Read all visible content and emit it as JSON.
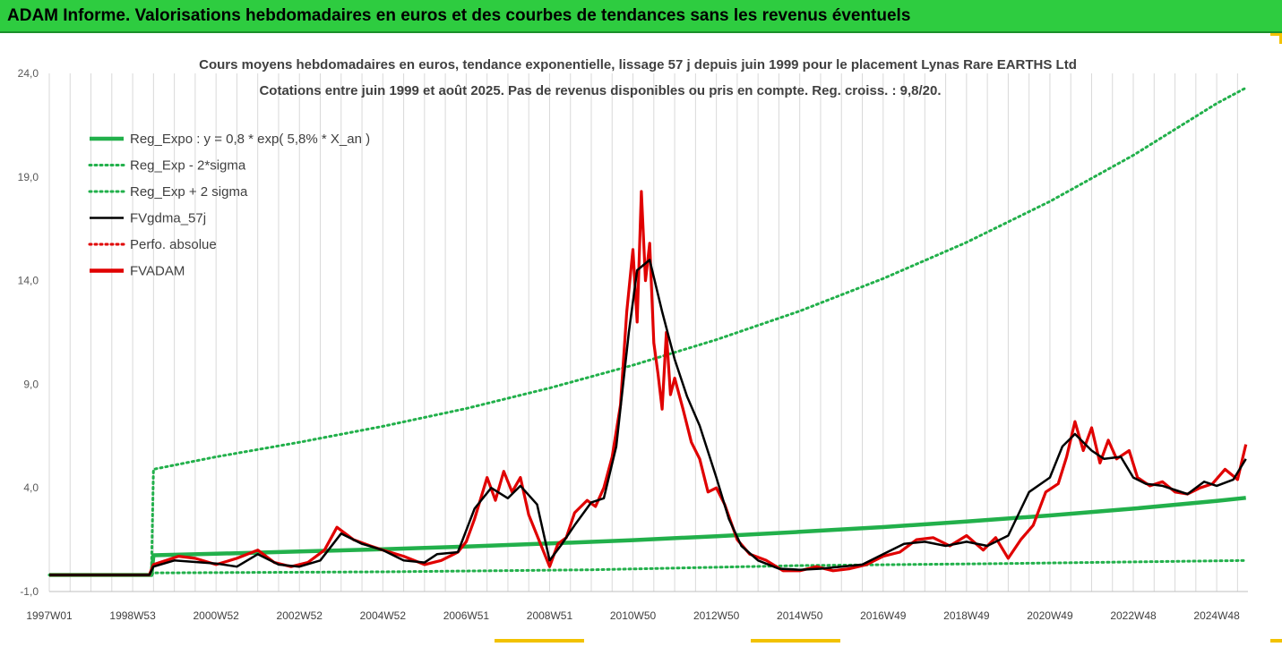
{
  "banner": {
    "title": "ADAM Informe. Valorisations hebdomadaires en euros et des courbes de tendances sans les revenus éventuels"
  },
  "colors": {
    "banner": "#2ecc40",
    "reg": "#22b04b",
    "sigma": "#22b04b",
    "fv57": "#000000",
    "perfo": "#e00000",
    "fvadam": "#e00000",
    "grid": "#d9d9d9"
  },
  "chart_data": {
    "type": "line",
    "title": "Cours moyens hebdomadaires en euros, tendance exponentielle, lissage 57 j depuis juin 1999 pour le placement Lynas Rare EARTHS Ltd",
    "subtitle": "Cotations entre juin 1999 et août 2025. Pas de revenus disponibles ou pris en compte. Reg. croiss. : 9,8/20.",
    "xlabel": "",
    "ylabel": "",
    "ylim": [
      -1,
      24
    ],
    "yticks": [
      "24,0",
      "19,0",
      "14,0",
      "9,0",
      "4,0",
      "-1,0"
    ],
    "yvalues": [
      24,
      19,
      14,
      9,
      4,
      -1
    ],
    "xlim": [
      1997.0,
      2025.75
    ],
    "xtick_labels": [
      "1997W01",
      "1998W53",
      "2000W52",
      "2002W52",
      "2004W52",
      "2006W51",
      "2008W51",
      "2010W50",
      "2012W50",
      "2014W50",
      "2016W49",
      "2018W49",
      "2020W49",
      "2022W48",
      "2024W48"
    ],
    "xtick_values": [
      1997.0,
      1999.0,
      2001.0,
      2003.0,
      2005.0,
      2007.0,
      2009.0,
      2011.0,
      2013.0,
      2015.0,
      2017.0,
      2019.0,
      2021.0,
      2023.0,
      2025.0
    ],
    "legend_position": "top-left",
    "grid": "vertical",
    "series": [
      {
        "name": "Reg_Expo : y = 0,8 * exp( 5,8% *  X_an )",
        "style": "solid-thick",
        "color": "#22b04b",
        "x": [
          1997.0,
          1999.45,
          1999.5,
          2001,
          2003,
          2005,
          2007,
          2009,
          2011,
          2013,
          2015,
          2017,
          2019,
          2021,
          2023,
          2025,
          2025.7
        ],
        "y": [
          -0.2,
          -0.2,
          0.75,
          0.82,
          0.93,
          1.04,
          1.17,
          1.32,
          1.48,
          1.67,
          1.88,
          2.11,
          2.38,
          2.67,
          3.0,
          3.37,
          3.52
        ]
      },
      {
        "name": "Reg_Exp - 2*sigma",
        "style": "dotted",
        "color": "#22b04b",
        "x": [
          1997.0,
          1999.45,
          1999.5,
          2005,
          2010,
          2015,
          2020,
          2025.7
        ],
        "y": [
          -0.2,
          -0.2,
          -0.1,
          -0.05,
          0.05,
          0.25,
          0.35,
          0.5
        ]
      },
      {
        "name": "Reg_Exp + 2 sigma",
        "style": "dotted",
        "color": "#22b04b",
        "x": [
          1997.0,
          1999.45,
          1999.5,
          2001,
          2003,
          2005,
          2007,
          2009,
          2011,
          2013,
          2015,
          2017,
          2019,
          2021,
          2023,
          2025,
          2025.7
        ],
        "y": [
          -0.2,
          -0.2,
          4.9,
          5.5,
          6.2,
          6.97,
          7.83,
          8.82,
          9.92,
          11.15,
          12.53,
          14.1,
          15.85,
          17.82,
          20.05,
          22.55,
          23.3
        ]
      },
      {
        "name": "FVgdma_57j",
        "style": "solid",
        "color": "#000000",
        "x": [
          1997.0,
          1999.4,
          1999.5,
          2000,
          2001,
          2001.5,
          2002,
          2002.5,
          2003,
          2003.5,
          2004,
          2004.5,
          2005,
          2005.5,
          2006,
          2006.3,
          2006.8,
          2007.2,
          2007.6,
          2008,
          2008.3,
          2008.7,
          2009,
          2009.3,
          2009.6,
          2010,
          2010.3,
          2010.6,
          2010.9,
          2011.1,
          2011.4,
          2011.7,
          2012,
          2012.3,
          2012.6,
          2013,
          2013.3,
          2013.6,
          2014,
          2014.5,
          2015,
          2015.5,
          2016,
          2016.5,
          2017,
          2017.5,
          2018,
          2018.5,
          2019,
          2019.5,
          2020,
          2020.5,
          2021,
          2021.3,
          2021.6,
          2022,
          2022.3,
          2022.7,
          2023,
          2023.3,
          2023.7,
          2024,
          2024.3,
          2024.7,
          2025,
          2025.4,
          2025.7
        ],
        "y": [
          -0.2,
          -0.2,
          0.2,
          0.5,
          0.35,
          0.2,
          0.8,
          0.3,
          0.2,
          0.5,
          1.8,
          1.3,
          1.0,
          0.5,
          0.4,
          0.8,
          0.9,
          3.0,
          4.0,
          3.5,
          4.1,
          3.2,
          0.5,
          1.3,
          2.2,
          3.3,
          3.5,
          6.0,
          11.5,
          14.5,
          15.0,
          12.5,
          10.2,
          8.4,
          7.0,
          4.5,
          2.5,
          1.2,
          0.5,
          0.1,
          0.05,
          0.1,
          0.2,
          0.3,
          0.8,
          1.3,
          1.4,
          1.2,
          1.4,
          1.2,
          1.7,
          3.8,
          4.5,
          6.0,
          6.6,
          5.8,
          5.4,
          5.5,
          4.5,
          4.2,
          4.1,
          3.9,
          3.7,
          4.3,
          4.1,
          4.4,
          5.4
        ]
      },
      {
        "name": "Perfo. absolue",
        "style": "dotted",
        "color": "#e00000",
        "x": [],
        "y": []
      },
      {
        "name": "FVADAM",
        "style": "solid-thick",
        "color": "#e00000",
        "x": [
          1997.0,
          1999.4,
          1999.5,
          1999.8,
          2000.1,
          2000.5,
          2001.0,
          2001.5,
          2002.0,
          2002.4,
          2002.8,
          2003.2,
          2003.6,
          2003.9,
          2004.3,
          2004.7,
          2005.0,
          2005.5,
          2006.0,
          2006.4,
          2006.8,
          2007.0,
          2007.2,
          2007.5,
          2007.7,
          2007.9,
          2008.1,
          2008.3,
          2008.5,
          2008.8,
          2009.0,
          2009.2,
          2009.4,
          2009.6,
          2009.9,
          2010.1,
          2010.3,
          2010.5,
          2010.7,
          2010.85,
          2011.0,
          2011.1,
          2011.2,
          2011.3,
          2011.4,
          2011.5,
          2011.6,
          2011.7,
          2011.8,
          2011.9,
          2012.0,
          2012.2,
          2012.4,
          2012.6,
          2012.8,
          2013.0,
          2013.2,
          2013.5,
          2013.8,
          2014.2,
          2014.6,
          2015.0,
          2015.4,
          2015.8,
          2016.2,
          2016.6,
          2017.0,
          2017.4,
          2017.8,
          2018.2,
          2018.6,
          2019.0,
          2019.4,
          2019.7,
          2020.0,
          2020.3,
          2020.6,
          2020.9,
          2021.2,
          2021.4,
          2021.6,
          2021.8,
          2022.0,
          2022.2,
          2022.4,
          2022.6,
          2022.9,
          2023.1,
          2023.4,
          2023.7,
          2024.0,
          2024.3,
          2024.6,
          2024.9,
          2025.2,
          2025.5,
          2025.7
        ],
        "y": [
          -0.2,
          -0.2,
          0.3,
          0.5,
          0.7,
          0.6,
          0.3,
          0.6,
          1.0,
          0.4,
          0.2,
          0.4,
          1.0,
          2.1,
          1.5,
          1.2,
          1.0,
          0.7,
          0.3,
          0.5,
          0.9,
          1.4,
          2.5,
          4.5,
          3.4,
          4.8,
          3.8,
          4.5,
          2.7,
          1.2,
          0.2,
          1.3,
          1.6,
          2.8,
          3.4,
          3.1,
          4.0,
          5.5,
          8.0,
          12.5,
          15.5,
          12.0,
          18.3,
          14.0,
          15.8,
          11.0,
          9.5,
          7.8,
          11.5,
          8.5,
          9.3,
          7.8,
          6.2,
          5.4,
          3.8,
          4.0,
          3.2,
          1.5,
          0.8,
          0.5,
          0.0,
          0.0,
          0.2,
          0.0,
          0.1,
          0.3,
          0.7,
          0.9,
          1.5,
          1.6,
          1.2,
          1.7,
          1.0,
          1.6,
          0.6,
          1.5,
          2.2,
          3.8,
          4.2,
          5.5,
          7.2,
          5.8,
          6.9,
          5.2,
          6.3,
          5.4,
          5.8,
          4.5,
          4.1,
          4.3,
          3.8,
          3.7,
          4.0,
          4.2,
          4.9,
          4.4,
          6.1
        ]
      }
    ]
  }
}
